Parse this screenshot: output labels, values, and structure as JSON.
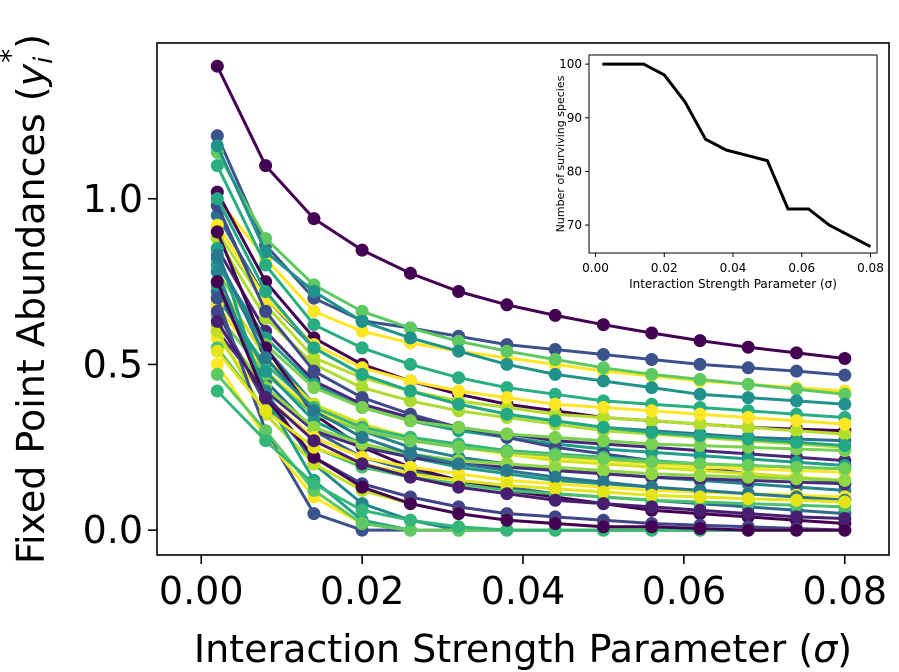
{
  "chart_data": [
    {
      "type": "line",
      "xlabel": "Interaction Strength Parameter (σ)",
      "ylabel": "Fixed Point Abundances (yᵢ*)",
      "ylabel_base": "Fixed Point Abundances (",
      "ylabel_sym": "y",
      "ylabel_sub": "i",
      "ylabel_sup": "*",
      "ylabel_close": ")",
      "xlabel_base": "Interaction Strength Parameter (",
      "xlabel_sym": "σ",
      "xlabel_close": ")",
      "xlim": [
        -0.0055,
        0.0855
      ],
      "ylim": [
        -0.075,
        1.47
      ],
      "x": [
        0.002,
        0.008,
        0.014,
        0.02,
        0.026,
        0.032,
        0.038,
        0.044,
        0.05,
        0.056,
        0.062,
        0.068,
        0.074,
        0.08
      ],
      "xticks": [
        0.0,
        0.02,
        0.04,
        0.06,
        0.08
      ],
      "xtick_labels": [
        "0.00",
        "0.02",
        "0.04",
        "0.06",
        "0.08"
      ],
      "yticks": [
        0.0,
        0.5,
        1.0
      ],
      "ytick_labels": [
        "0.0",
        "0.5",
        "1.0"
      ],
      "colormap": "viridis",
      "marker": "circle",
      "series": [
        {
          "color": "#440154",
          "values": [
            1.4,
            1.1,
            0.94,
            0.845,
            0.775,
            0.72,
            0.68,
            0.648,
            0.62,
            0.595,
            0.572,
            0.552,
            0.535,
            0.518
          ]
        },
        {
          "color": "#3b528b",
          "values": [
            1.19,
            0.86,
            0.7,
            0.632,
            0.61,
            0.585,
            0.56,
            0.545,
            0.53,
            0.515,
            0.5,
            0.49,
            0.48,
            0.468
          ]
        },
        {
          "color": "#fde725",
          "values": [
            1.0,
            0.82,
            0.66,
            0.6,
            0.565,
            0.54,
            0.52,
            0.5,
            0.48,
            0.465,
            0.45,
            0.44,
            0.43,
            0.42
          ]
        },
        {
          "color": "#5ec962",
          "values": [
            1.14,
            0.88,
            0.74,
            0.66,
            0.61,
            0.57,
            0.54,
            0.515,
            0.49,
            0.47,
            0.455,
            0.44,
            0.425,
            0.41
          ]
        },
        {
          "color": "#21918c",
          "values": [
            1.16,
            0.84,
            0.72,
            0.63,
            0.58,
            0.54,
            0.5,
            0.47,
            0.45,
            0.43,
            0.41,
            0.4,
            0.39,
            0.38
          ]
        },
        {
          "color": "#440154",
          "values": [
            1.02,
            0.75,
            0.58,
            0.5,
            0.45,
            0.41,
            0.38,
            0.36,
            0.34,
            0.33,
            0.32,
            0.31,
            0.305,
            0.3
          ]
        },
        {
          "color": "#2c728e",
          "values": [
            0.95,
            0.7,
            0.55,
            0.47,
            0.42,
            0.38,
            0.35,
            0.33,
            0.31,
            0.3,
            0.29,
            0.28,
            0.275,
            0.27
          ]
        },
        {
          "color": "#b5de2b",
          "values": [
            0.9,
            0.68,
            0.52,
            0.46,
            0.42,
            0.39,
            0.37,
            0.35,
            0.34,
            0.33,
            0.32,
            0.31,
            0.3,
            0.29
          ]
        },
        {
          "color": "#28ae80",
          "values": [
            1.1,
            0.8,
            0.62,
            0.55,
            0.5,
            0.46,
            0.43,
            0.41,
            0.39,
            0.38,
            0.37,
            0.36,
            0.35,
            0.34
          ]
        },
        {
          "color": "#482878",
          "values": [
            0.85,
            0.6,
            0.45,
            0.38,
            0.34,
            0.31,
            0.29,
            0.27,
            0.26,
            0.25,
            0.24,
            0.23,
            0.22,
            0.21
          ]
        },
        {
          "color": "#addc30",
          "values": [
            0.88,
            0.64,
            0.5,
            0.43,
            0.39,
            0.36,
            0.34,
            0.32,
            0.3,
            0.29,
            0.28,
            0.27,
            0.26,
            0.25
          ]
        },
        {
          "color": "#1f9e89",
          "values": [
            0.8,
            0.58,
            0.44,
            0.37,
            0.33,
            0.3,
            0.28,
            0.26,
            0.245,
            0.235,
            0.225,
            0.215,
            0.205,
            0.195
          ]
        },
        {
          "color": "#fde725",
          "values": [
            0.92,
            0.7,
            0.56,
            0.49,
            0.45,
            0.42,
            0.4,
            0.38,
            0.37,
            0.36,
            0.35,
            0.34,
            0.33,
            0.32
          ]
        },
        {
          "color": "#3e4989",
          "values": [
            0.98,
            0.66,
            0.48,
            0.4,
            0.35,
            0.31,
            0.28,
            0.25,
            0.23,
            0.21,
            0.19,
            0.17,
            0.16,
            0.14
          ]
        },
        {
          "color": "#7ad151",
          "values": [
            0.78,
            0.56,
            0.43,
            0.37,
            0.33,
            0.31,
            0.29,
            0.28,
            0.27,
            0.26,
            0.255,
            0.25,
            0.245,
            0.24
          ]
        },
        {
          "color": "#26828e",
          "values": [
            0.82,
            0.55,
            0.38,
            0.3,
            0.25,
            0.22,
            0.2,
            0.18,
            0.17,
            0.16,
            0.15,
            0.14,
            0.13,
            0.12
          ]
        },
        {
          "color": "#d2e21b",
          "values": [
            0.75,
            0.52,
            0.38,
            0.32,
            0.28,
            0.25,
            0.23,
            0.21,
            0.2,
            0.19,
            0.18,
            0.17,
            0.16,
            0.15
          ]
        },
        {
          "color": "#35b779",
          "values": [
            0.7,
            0.5,
            0.37,
            0.31,
            0.28,
            0.26,
            0.24,
            0.23,
            0.22,
            0.21,
            0.2,
            0.195,
            0.19,
            0.185
          ]
        },
        {
          "color": "#31688e",
          "values": [
            0.72,
            0.45,
            0.3,
            0.22,
            0.18,
            0.15,
            0.13,
            0.11,
            0.1,
            0.09,
            0.08,
            0.07,
            0.06,
            0.05
          ]
        },
        {
          "color": "#fde725",
          "values": [
            0.68,
            0.48,
            0.36,
            0.3,
            0.27,
            0.25,
            0.23,
            0.22,
            0.21,
            0.2,
            0.19,
            0.185,
            0.18,
            0.175
          ]
        },
        {
          "color": "#440154",
          "values": [
            0.9,
            0.55,
            0.35,
            0.25,
            0.19,
            0.15,
            0.12,
            0.1,
            0.08,
            0.06,
            0.05,
            0.04,
            0.03,
            0.02
          ]
        },
        {
          "color": "#6ccd5a",
          "values": [
            0.65,
            0.47,
            0.35,
            0.3,
            0.27,
            0.25,
            0.235,
            0.225,
            0.215,
            0.205,
            0.2,
            0.195,
            0.19,
            0.185
          ]
        },
        {
          "color": "#1f988b",
          "values": [
            0.74,
            0.48,
            0.33,
            0.26,
            0.22,
            0.19,
            0.17,
            0.15,
            0.14,
            0.13,
            0.12,
            0.11,
            0.1,
            0.09
          ]
        },
        {
          "color": "#472d7b",
          "values": [
            0.6,
            0.42,
            0.3,
            0.25,
            0.22,
            0.2,
            0.19,
            0.18,
            0.17,
            0.16,
            0.155,
            0.15,
            0.145,
            0.14
          ]
        },
        {
          "color": "#8fd744",
          "values": [
            0.62,
            0.43,
            0.31,
            0.26,
            0.23,
            0.21,
            0.2,
            0.19,
            0.18,
            0.17,
            0.165,
            0.16,
            0.155,
            0.15
          ]
        },
        {
          "color": "#fde725",
          "values": [
            0.58,
            0.4,
            0.28,
            0.22,
            0.19,
            0.17,
            0.15,
            0.14,
            0.13,
            0.12,
            0.115,
            0.11,
            0.105,
            0.1
          ]
        },
        {
          "color": "#24868e",
          "values": [
            0.78,
            0.42,
            0.2,
            0.08,
            0.03,
            0.0,
            0.0,
            0.0,
            0.0,
            0.0,
            0.0,
            0.0,
            0.0,
            0.0
          ]
        },
        {
          "color": "#4ac16d",
          "values": [
            0.55,
            0.36,
            0.25,
            0.19,
            0.16,
            0.14,
            0.12,
            0.11,
            0.1,
            0.09,
            0.085,
            0.08,
            0.075,
            0.07
          ]
        },
        {
          "color": "#414487",
          "values": [
            0.66,
            0.38,
            0.22,
            0.14,
            0.1,
            0.07,
            0.05,
            0.04,
            0.03,
            0.02,
            0.015,
            0.01,
            0.005,
            0.0
          ]
        },
        {
          "color": "#c2df23",
          "values": [
            0.6,
            0.35,
            0.2,
            0.12,
            0.08,
            0.05,
            0.03,
            0.02,
            0.01,
            0.0,
            0.0,
            0.0,
            0.0,
            0.0
          ]
        },
        {
          "color": "#1fa188",
          "values": [
            0.85,
            0.4,
            0.15,
            0.03,
            0.0,
            0.0,
            0.0,
            0.0,
            0.0,
            0.0,
            0.0,
            0.0,
            0.0,
            0.0
          ]
        },
        {
          "color": "#3b528b",
          "values": [
            0.7,
            0.3,
            0.05,
            0.0,
            0.0,
            0.0,
            0.0,
            0.0,
            0.0,
            0.0,
            0.0,
            0.0,
            0.0,
            0.0
          ]
        },
        {
          "color": "#fde725",
          "values": [
            0.5,
            0.28,
            0.1,
            0.02,
            0.0,
            0.0,
            0.0,
            0.0,
            0.0,
            0.0,
            0.0,
            0.0,
            0.0,
            0.0
          ]
        },
        {
          "color": "#5ec962",
          "values": [
            0.47,
            0.3,
            0.12,
            0.02,
            0.0,
            0.0,
            0.0,
            0.0,
            0.0,
            0.0,
            0.0,
            0.0,
            0.0,
            0.0
          ]
        },
        {
          "color": "#35b779",
          "values": [
            0.42,
            0.27,
            0.14,
            0.06,
            0.03,
            0.01,
            0.0,
            0.0,
            0.0,
            0.0,
            0.0,
            0.0,
            0.0,
            0.0
          ]
        },
        {
          "color": "#440154",
          "values": [
            0.75,
            0.4,
            0.22,
            0.13,
            0.08,
            0.05,
            0.03,
            0.02,
            0.01,
            0.01,
            0.005,
            0.0,
            0.0,
            0.0
          ]
        },
        {
          "color": "#2a788e",
          "values": [
            0.83,
            0.52,
            0.36,
            0.28,
            0.23,
            0.2,
            0.18,
            0.16,
            0.145,
            0.13,
            0.12,
            0.11,
            0.1,
            0.09
          ]
        },
        {
          "color": "#e5e419",
          "values": [
            0.54,
            0.36,
            0.25,
            0.2,
            0.17,
            0.15,
            0.135,
            0.125,
            0.115,
            0.105,
            0.1,
            0.095,
            0.09,
            0.085
          ]
        },
        {
          "color": "#22a884",
          "values": [
            1.0,
            0.72,
            0.55,
            0.47,
            0.42,
            0.38,
            0.35,
            0.33,
            0.31,
            0.295,
            0.285,
            0.275,
            0.265,
            0.255
          ]
        },
        {
          "color": "#481f70",
          "values": [
            0.63,
            0.4,
            0.27,
            0.2,
            0.16,
            0.13,
            0.11,
            0.09,
            0.08,
            0.07,
            0.06,
            0.05,
            0.04,
            0.035
          ]
        }
      ]
    },
    {
      "type": "line",
      "xlabel": "Interaction Strength Parameter (σ)",
      "ylabel": "Number of surviving species",
      "xlim": [
        -0.0019,
        0.0819
      ],
      "ylim": [
        64.8,
        101.7
      ],
      "x": [
        0.002,
        0.008,
        0.014,
        0.02,
        0.026,
        0.032,
        0.038,
        0.044,
        0.05,
        0.056,
        0.062,
        0.068,
        0.074,
        0.08
      ],
      "values": [
        100,
        100,
        100,
        98,
        93,
        86,
        84,
        83,
        82,
        73,
        73,
        70,
        68,
        66
      ],
      "xticks": [
        0.0,
        0.02,
        0.04,
        0.06,
        0.08
      ],
      "xtick_labels": [
        "0.00",
        "0.02",
        "0.04",
        "0.06",
        "0.08"
      ],
      "yticks": [
        70,
        80,
        90,
        100
      ],
      "ytick_labels": [
        "70",
        "80",
        "90",
        "100"
      ],
      "color": "#000000"
    }
  ]
}
